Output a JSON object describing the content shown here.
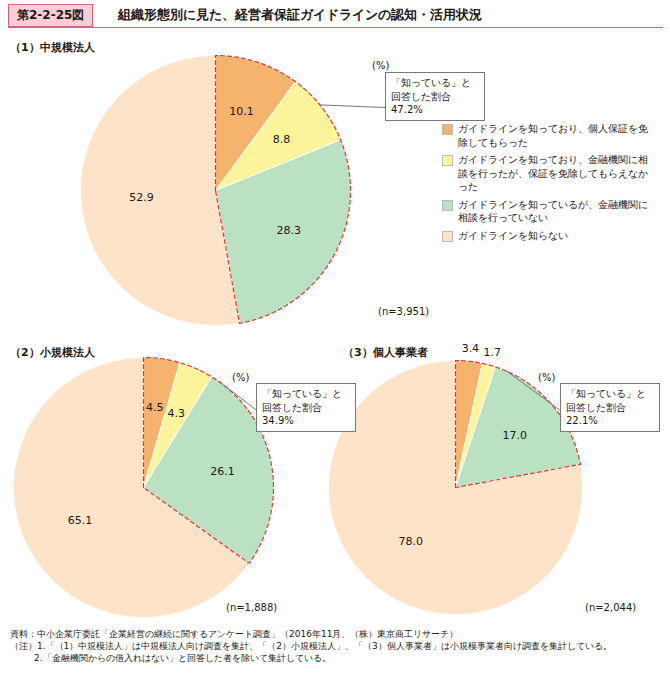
{
  "figure_number": "第2-2-25図",
  "title": "組織形態別に見た、経営者保証ガイドラインの認知・活用状況",
  "source": "資料：中小企業庁委託「企業経営の継続に関するアンケート調査」（2016年11月、（株）東京商工リサーチ）",
  "notes": [
    "（注）1.「（1）中規模法人」は中規模法人向け調査を集計、「（2）小規模法人」、「（3）個人事業者」は小規模事業者向け調査を集計している。",
    "2.「金融機関からの借入れはない」と回答した者を除いて集計している。"
  ],
  "chart_data": [
    {
      "type": "pie",
      "title": "（1）中規模法人",
      "categories": [
        "ガイドラインを知っており、個人保証を免除してもらった",
        "ガイドラインを知っており、金融機関に相談を行ったが、保証を免除してもらえなかった",
        "ガイドラインを知っているが、金融機関に相談を行っていない",
        "ガイドラインを知らない"
      ],
      "values": [
        10.1,
        8.8,
        28.3,
        52.9
      ],
      "colors": [
        "#f6b36e",
        "#fdf49c",
        "#b9e1c2",
        "#fde3c8"
      ],
      "data_labels": true,
      "legend": "right",
      "unit": "(%)",
      "annotation": "「知っている」と\n回答した割合47.2%",
      "caption": "(n=3,951)"
    },
    {
      "type": "pie",
      "title": "（2）小規模法人",
      "categories": [
        "ガイドラインを知っており、個人保証を免除してもらった",
        "ガイドラインを知っており、金融機関に相談を行ったが、保証を免除してもらえなかった",
        "ガイドラインを知っているが、金融機関に相談を行っていない",
        "ガイドラインを知らない"
      ],
      "values": [
        4.5,
        4.3,
        26.1,
        65.1
      ],
      "colors": [
        "#f6b36e",
        "#fdf49c",
        "#b9e1c2",
        "#fde3c8"
      ],
      "data_labels": true,
      "unit": "(%)",
      "annotation": "「知っている」と\n回答した割合34.9%",
      "caption": "(n=1,888)"
    },
    {
      "type": "pie",
      "title": "（3）個人事業者",
      "categories": [
        "ガイドラインを知っており、個人保証を免除してもらった",
        "ガイドラインを知っており、金融機関に相談を行ったが、保証を免除してもらえなかった",
        "ガイドラインを知っているが、金融機関に相談を行っていない",
        "ガイドラインを知らない"
      ],
      "values": [
        3.4,
        1.7,
        17.0,
        78.0
      ],
      "value_labels": [
        "3.4",
        "1.7",
        "17.0",
        "78.0"
      ],
      "colors": [
        "#f6b36e",
        "#fdf49c",
        "#b9e1c2",
        "#fde3c8"
      ],
      "data_labels": true,
      "unit": "(%)",
      "annotation": "「知っている」と\n回答した割合22.1%",
      "caption": "(n=2,044)"
    }
  ]
}
